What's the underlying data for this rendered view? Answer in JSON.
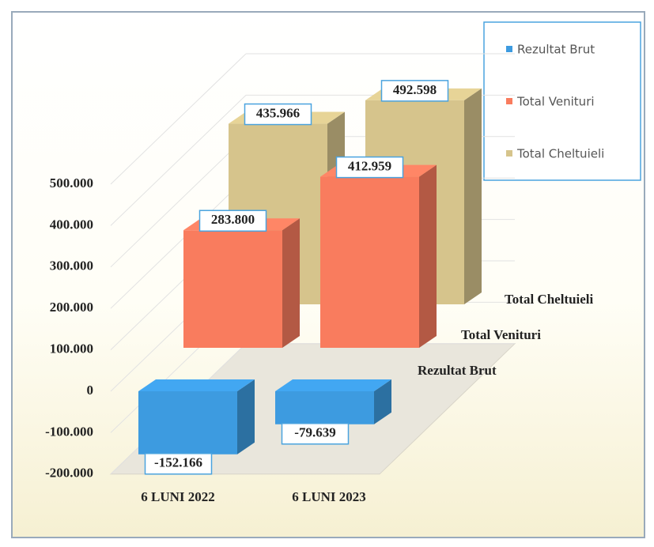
{
  "chart_data": {
    "type": "bar3d",
    "categories": [
      "6 LUNI 2022",
      "6 LUNI 2023"
    ],
    "series": [
      {
        "name": "Rezultat Brut",
        "color": "#3d9be0",
        "values": [
          -152166,
          -79639
        ],
        "value_labels": [
          "-152.166",
          "-79.639"
        ]
      },
      {
        "name": "Total Venituri",
        "color": "#f97c5e",
        "values": [
          283800,
          412959
        ],
        "value_labels": [
          "283.800",
          "412.959"
        ]
      },
      {
        "name": "Total Cheltuieli",
        "color": "#d6c48c",
        "values": [
          435966,
          492598
        ],
        "value_labels": [
          "435.966",
          "492.598"
        ]
      }
    ],
    "ylim": [
      -200000,
      500000
    ],
    "yticks": [
      {
        "value": -200000,
        "label": "-200.000"
      },
      {
        "value": -100000,
        "label": "-100.000"
      },
      0,
      {
        "value": 100000,
        "label": "100.000"
      },
      {
        "value": 200000,
        "label": "200.000"
      },
      {
        "value": 300000,
        "label": "300.000"
      },
      {
        "value": 400000,
        "label": "400.000"
      },
      {
        "value": 500000,
        "label": "500.000"
      }
    ],
    "grid": true,
    "legend": "top-right"
  }
}
